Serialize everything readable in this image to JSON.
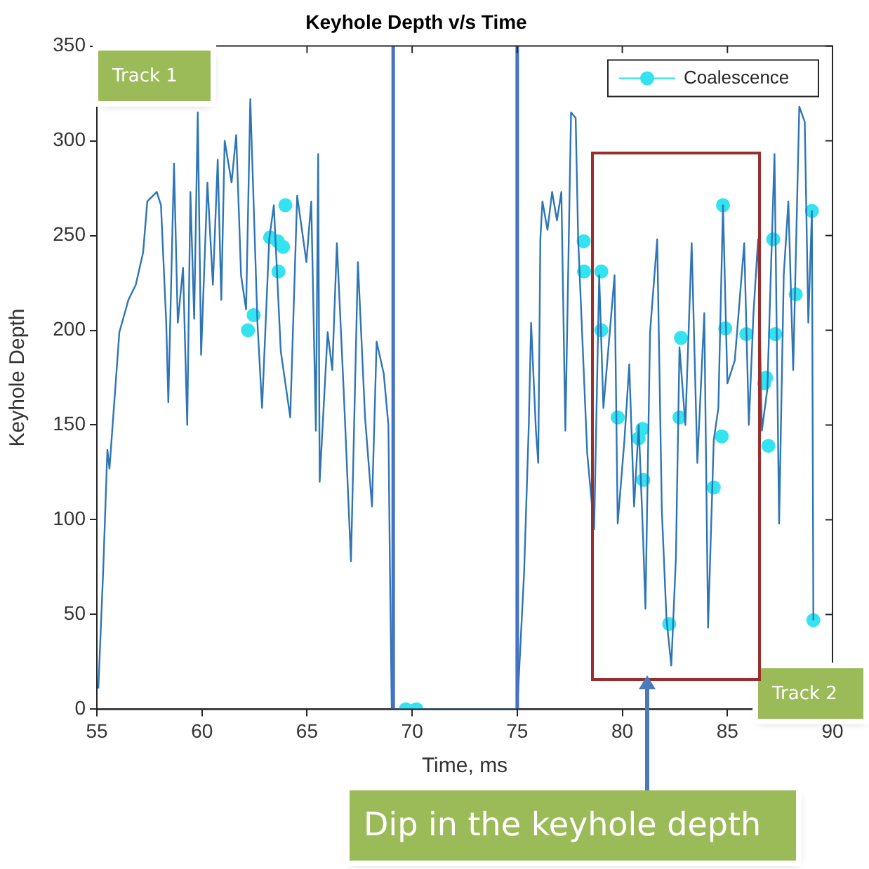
{
  "chart_data": {
    "type": "line",
    "title": "Keyhole Depth v/s Time",
    "xlabel": "Time, ms",
    "ylabel": "Keyhole Depth",
    "annotations": [
      "Track 1",
      "Track 2",
      "Dip in the keyhole depth"
    ],
    "xlim": [
      55,
      90
    ],
    "xticks": [
      55,
      60,
      65,
      70,
      75,
      80,
      85,
      90
    ],
    "ylim": [
      0,
      350
    ],
    "yticks": [
      0,
      50,
      100,
      150,
      200,
      250,
      300,
      350
    ],
    "grid": false,
    "legend": "top right",
    "ref_lines": [
      {
        "axis": "x",
        "value": 69.1,
        "color": "#4472c4"
      },
      {
        "axis": "x",
        "value": 75,
        "color": "#4472c4"
      }
    ],
    "series": [
      {
        "color": "#2e75b6",
        "marker": "none",
        "x": [
          55.07,
          55.3,
          55.5,
          55.6,
          56.07,
          56.5,
          56.85,
          57.2,
          57.4,
          57.85,
          58.05,
          58.3,
          58.4,
          58.67,
          58.85,
          59.1,
          59.3,
          59.45,
          59.63,
          59.8,
          59.96,
          60.26,
          60.52,
          60.75,
          60.92,
          61.08,
          61.41,
          61.63,
          61.86,
          62.1,
          62.3,
          62.64,
          62.86,
          63.2,
          63.42,
          63.75,
          64.2,
          64.53,
          64.97,
          65.2,
          65.42,
          65.53,
          65.6,
          65.98,
          66.2,
          66.42,
          66.76,
          67.09,
          67.42,
          67.76,
          68.09,
          68.31,
          68.65,
          68.87,
          68.94,
          69.03,
          75.0,
          75.33,
          75.55,
          75.66,
          75.89,
          76.0,
          76.1,
          76.2,
          76.44,
          76.66,
          76.89,
          77.1,
          77.29,
          77.35,
          77.56,
          77.78,
          77.9,
          78.33,
          78.66,
          78.9,
          79.1,
          79.63,
          79.78,
          80.1,
          80.33,
          80.56,
          80.78,
          80.99,
          81.1,
          81.32,
          81.66,
          81.88,
          82.1,
          82.33,
          82.55,
          82.72,
          83.0,
          83.3,
          83.57,
          83.9,
          84.08,
          84.35,
          84.57,
          84.79,
          85.0,
          85.35,
          85.8,
          86.02,
          86.24,
          86.46,
          86.64,
          86.9,
          87.24,
          87.46,
          87.68,
          87.9,
          88.13,
          88.42,
          88.68,
          88.85,
          89.02,
          89.09
        ],
        "values": [
          11,
          73,
          137,
          127,
          199,
          216,
          224,
          241,
          268,
          273,
          266,
          204,
          162,
          288,
          204,
          233,
          150,
          273,
          206,
          315,
          187,
          278,
          224,
          290,
          216,
          300,
          278,
          303,
          229,
          211,
          322,
          204,
          159,
          248,
          266,
          189,
          154,
          271,
          236,
          268,
          147,
          293,
          120,
          199,
          179,
          246,
          164,
          78,
          236,
          154,
          107,
          194,
          177,
          150,
          78,
          0,
          0,
          73,
          150,
          204,
          147,
          130,
          248,
          268,
          253,
          273,
          258,
          273,
          147,
          184,
          315,
          312,
          248,
          135,
          95,
          229,
          159,
          229,
          98,
          142,
          182,
          107,
          150,
          90,
          53,
          199,
          248,
          105,
          48,
          23,
          80,
          191,
          150,
          246,
          130,
          209,
          43,
          142,
          159,
          266,
          172,
          184,
          246,
          150,
          209,
          248,
          147,
          169,
          293,
          98,
          229,
          268,
          179,
          318,
          310,
          204,
          263,
          47
        ]
      },
      {
        "type": "scatter",
        "name": "Coalescence",
        "color": "#33e3f0",
        "marker": "circle",
        "x": [
          62.19,
          62.46,
          63.24,
          63.6,
          63.86,
          63.64,
          63.97,
          69.7,
          70.2,
          78.16,
          78.18,
          79.0,
          79.0,
          79.78,
          80.78,
          80.96,
          81.0,
          82.23,
          82.72,
          82.79,
          84.35,
          84.73,
          84.79,
          84.9,
          85.9,
          86.75,
          86.84,
          86.95,
          87.18,
          87.27,
          88.25,
          89.02,
          89.09
        ],
        "values": [
          200,
          208,
          249,
          247,
          244,
          231,
          266,
          0,
          0,
          247,
          231,
          231,
          200,
          154,
          143,
          148,
          121,
          45,
          154,
          196,
          117,
          144,
          266,
          201,
          198,
          172,
          175,
          139,
          248,
          198,
          219,
          263,
          47
        ]
      }
    ]
  }
}
